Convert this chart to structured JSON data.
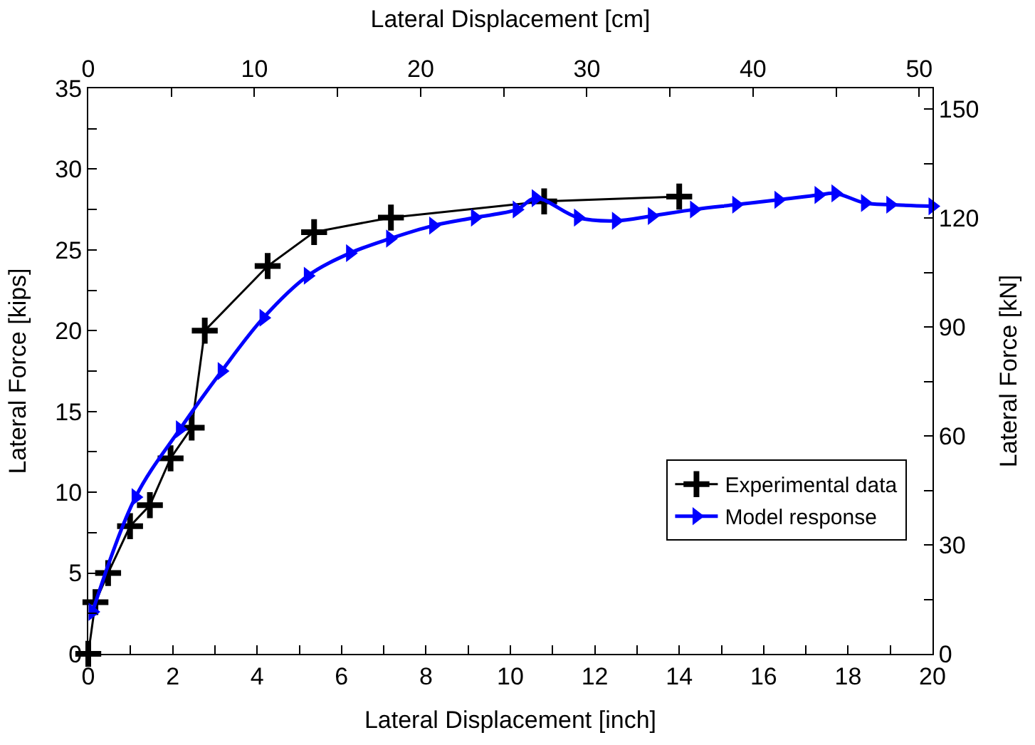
{
  "chart_data": {
    "type": "line",
    "xlabel": "Lateral Displacement [inch]",
    "ylabel": "Lateral Force [kips]",
    "x2label": "Lateral Displacement [cm]",
    "y2label": "Lateral Force [kN]",
    "xlim": [
      0,
      20
    ],
    "xticks": [
      0,
      {
        "value": 1,
        "label": null
      },
      2,
      {
        "value": 3,
        "label": null
      },
      4,
      {
        "value": 5,
        "label": null
      },
      6,
      {
        "value": 7,
        "label": null
      },
      8,
      {
        "value": 9,
        "label": null
      },
      10,
      {
        "value": 11,
        "label": null
      },
      12,
      {
        "value": 13,
        "label": null
      },
      14,
      {
        "value": 15,
        "label": null
      },
      16,
      {
        "value": 17,
        "label": null
      },
      18,
      {
        "value": 19,
        "label": null
      },
      20
    ],
    "ylim": [
      0,
      35
    ],
    "yticks": [
      0,
      {
        "value": 2.5,
        "label": null
      },
      5,
      {
        "value": 7.5,
        "label": null
      },
      10,
      {
        "value": 12.5,
        "label": null
      },
      15,
      {
        "value": 17.5,
        "label": null
      },
      20,
      {
        "value": 22.5,
        "label": null
      },
      25,
      {
        "value": 27.5,
        "label": null
      },
      30,
      {
        "value": 32.5,
        "label": null
      },
      35
    ],
    "x2lim": [
      0,
      50.8
    ],
    "x2ticks": [
      0,
      {
        "value": 5,
        "label": null
      },
      10,
      {
        "value": 15,
        "label": null
      },
      20,
      {
        "value": 25,
        "label": null
      },
      30,
      {
        "value": 35,
        "label": null
      },
      40,
      {
        "value": 45,
        "label": null
      },
      50
    ],
    "y2lim": [
      0,
      155.7
    ],
    "y2ticks": [
      0,
      {
        "value": 15,
        "label": null
      },
      30,
      {
        "value": 45,
        "label": null
      },
      60,
      {
        "value": 75,
        "label": null
      },
      90,
      {
        "value": 105,
        "label": null
      },
      120,
      {
        "value": 135,
        "label": null
      },
      150
    ],
    "legend": "bottom right",
    "series": [
      {
        "name": "Experimental data",
        "color": "#000000",
        "marker": "cross",
        "x": [
          0,
          0.17,
          0.47,
          0.99,
          1.46,
          1.95,
          2.45,
          2.76,
          4.25,
          5.35,
          7.17,
          10.8,
          14.0
        ],
        "values": [
          0,
          3.2,
          5.0,
          7.9,
          9.2,
          12.1,
          14.0,
          20.0,
          24.0,
          26.1,
          27.0,
          28.0,
          28.3
        ]
      },
      {
        "name": "Model response",
        "color": "#0000ff",
        "marker": "triangle",
        "x": [
          0.1,
          1.12,
          2.17,
          3.16,
          4.15,
          5.2,
          6.2,
          7.15,
          8.17,
          9.16,
          10.15,
          10.6,
          11.6,
          12.5,
          13.35,
          14.35,
          15.35,
          16.35,
          17.3,
          17.7,
          18.4,
          19.0,
          20.0
        ],
        "values": [
          2.6,
          9.7,
          13.9,
          17.5,
          20.8,
          23.4,
          24.8,
          25.7,
          26.5,
          27.0,
          27.5,
          28.2,
          27.0,
          26.8,
          27.1,
          27.5,
          27.8,
          28.1,
          28.4,
          28.5,
          27.9,
          27.8,
          27.7
        ]
      }
    ]
  }
}
